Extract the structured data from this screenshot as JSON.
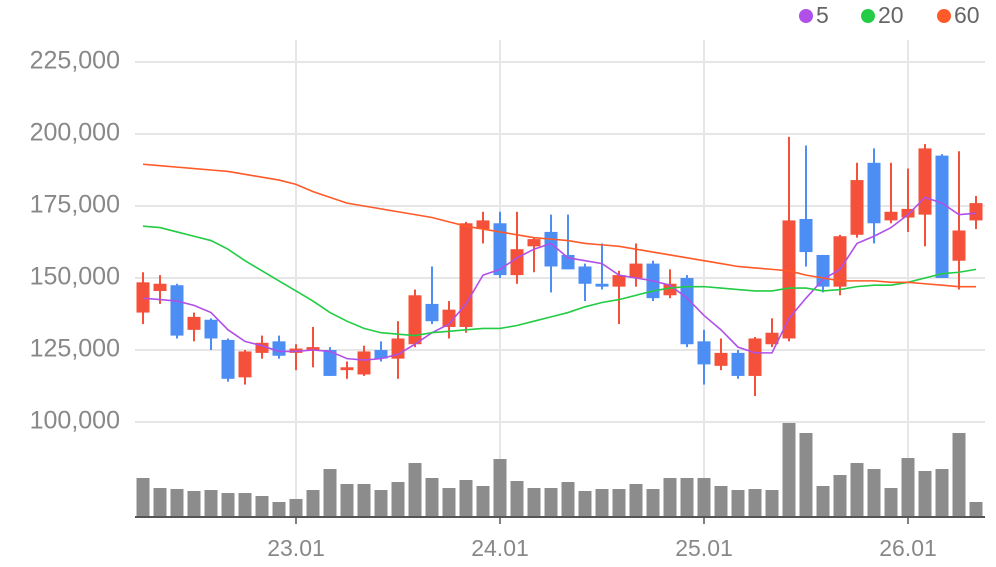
{
  "chart_data": {
    "type": "candlestick",
    "categories": [
      null,
      null,
      null,
      null,
      null,
      null,
      null,
      null,
      null,
      "23.01",
      null,
      null,
      null,
      null,
      null,
      null,
      null,
      null,
      null,
      null,
      null,
      "24.01",
      null,
      null,
      null,
      null,
      null,
      null,
      null,
      null,
      null,
      null,
      null,
      "25.01",
      null,
      null,
      null,
      null,
      null,
      null,
      null,
      null,
      null,
      null,
      null,
      "26.01",
      null,
      null,
      null,
      null
    ],
    "open": [
      138000,
      145500,
      147500,
      132000,
      135500,
      128500,
      115500,
      124000,
      128000,
      124000,
      125000,
      125000,
      118000,
      116500,
      125000,
      122000,
      127000,
      141000,
      133000,
      133000,
      167000,
      169000,
      151000,
      161000,
      166000,
      158000,
      154000,
      148000,
      147000,
      150000,
      155000,
      144000,
      150000,
      128000,
      119500,
      124000,
      116000,
      127000,
      129000,
      170500,
      158000,
      147000,
      165000,
      190000,
      170000,
      171000,
      172000,
      192500,
      156000,
      170000
    ],
    "high": [
      152000,
      151000,
      148000,
      138000,
      136000,
      129000,
      125000,
      130000,
      130000,
      127000,
      133000,
      126000,
      121000,
      126500,
      128000,
      135000,
      146000,
      154000,
      142000,
      169500,
      173000,
      173000,
      173000,
      164000,
      172000,
      172000,
      155000,
      162000,
      152500,
      162000,
      156000,
      153000,
      151000,
      132000,
      129000,
      125000,
      129500,
      136000,
      199000,
      196000,
      158000,
      165000,
      190000,
      195000,
      190000,
      188000,
      196500,
      193000,
      194000,
      178500
    ],
    "low": [
      134000,
      141000,
      129000,
      128000,
      125000,
      114000,
      113000,
      122000,
      122000,
      118000,
      119000,
      116000,
      115000,
      116000,
      121000,
      115000,
      126000,
      134000,
      129000,
      131000,
      162000,
      150000,
      148000,
      152000,
      145000,
      153000,
      142000,
      146000,
      134000,
      147000,
      142000,
      143000,
      126000,
      113000,
      118000,
      115000,
      109000,
      126000,
      128000,
      154000,
      145000,
      144000,
      164000,
      162000,
      169000,
      166000,
      161000,
      150000,
      146000,
      167000
    ],
    "close": [
      148500,
      148000,
      130000,
      136500,
      129000,
      115000,
      124500,
      127500,
      123000,
      125500,
      126000,
      116000,
      119000,
      124500,
      122000,
      129000,
      144000,
      135000,
      139000,
      169000,
      170000,
      151000,
      160000,
      163500,
      154000,
      153000,
      148000,
      147000,
      151000,
      155000,
      143000,
      148000,
      127000,
      120000,
      124000,
      116000,
      129000,
      131000,
      170000,
      159000,
      147000,
      164500,
      184000,
      169000,
      173000,
      174000,
      195000,
      150000,
      166500,
      176000
    ],
    "volume": [
      39,
      29,
      28,
      26,
      27,
      24,
      24,
      21,
      15,
      18,
      27,
      48,
      33,
      33,
      27,
      35,
      54,
      39,
      29,
      37,
      31,
      58,
      36,
      29,
      29,
      35,
      26,
      28,
      28,
      33,
      28,
      39,
      39,
      39,
      31,
      27,
      28,
      27,
      94,
      84,
      31,
      42,
      54,
      48,
      29,
      59,
      46,
      48,
      84,
      15
    ],
    "up_color": "#f4503a",
    "down_color": "#4d8ef5",
    "volume_color": "#8c8c8c",
    "series": [
      {
        "name": "5",
        "color": "#b050e8",
        "values": [
          143000,
          142500,
          142000,
          140500,
          138000,
          132000,
          128000,
          126500,
          124500,
          124500,
          125000,
          124500,
          122000,
          121500,
          122000,
          123500,
          127000,
          131000,
          134000,
          141000,
          151000,
          153000,
          157000,
          160000,
          162000,
          157000,
          156000,
          155000,
          151000,
          150000,
          149000,
          147500,
          143000,
          137000,
          132000,
          126000,
          124000,
          124000,
          136000,
          143000,
          149500,
          153000,
          162000,
          164500,
          167500,
          172000,
          178000,
          176000,
          172000,
          172500
        ]
      },
      {
        "name": "20",
        "color": "#22cc44",
        "values": [
          168000,
          167500,
          166000,
          164500,
          163000,
          160000,
          156000,
          152500,
          149000,
          145500,
          142000,
          138000,
          135000,
          132500,
          131000,
          130500,
          130000,
          131000,
          131500,
          132000,
          132500,
          132500,
          133500,
          135000,
          136500,
          138000,
          140000,
          141500,
          142500,
          144000,
          145500,
          146500,
          147000,
          147000,
          146500,
          146000,
          145500,
          145500,
          146500,
          146500,
          145500,
          146000,
          147000,
          147500,
          147500,
          148500,
          150000,
          151500,
          152000,
          153000
        ]
      },
      {
        "name": "60",
        "color": "#ff5a28",
        "values": [
          189500,
          189000,
          188500,
          188000,
          187500,
          187000,
          186000,
          185000,
          184000,
          182500,
          180000,
          178000,
          176000,
          175000,
          174000,
          173000,
          172000,
          171000,
          169500,
          168000,
          167000,
          166000,
          165000,
          164000,
          163500,
          163000,
          162000,
          161500,
          161000,
          160000,
          159000,
          158000,
          157000,
          156000,
          155000,
          154000,
          153500,
          153000,
          152500,
          151000,
          150000,
          149000,
          149000,
          149000,
          148500,
          148500,
          148000,
          147500,
          147000,
          147000
        ]
      }
    ],
    "ylim": [
      100000,
      225000
    ],
    "yticks": [
      {
        "value": 100000,
        "label": "100,000"
      },
      {
        "value": 125000,
        "label": "125,000"
      },
      {
        "value": 150000,
        "label": "150,000"
      },
      {
        "value": 175000,
        "label": "175,000"
      },
      {
        "value": 200000,
        "label": "200,000"
      },
      {
        "value": 225000,
        "label": "225,000"
      }
    ],
    "grid": true
  }
}
